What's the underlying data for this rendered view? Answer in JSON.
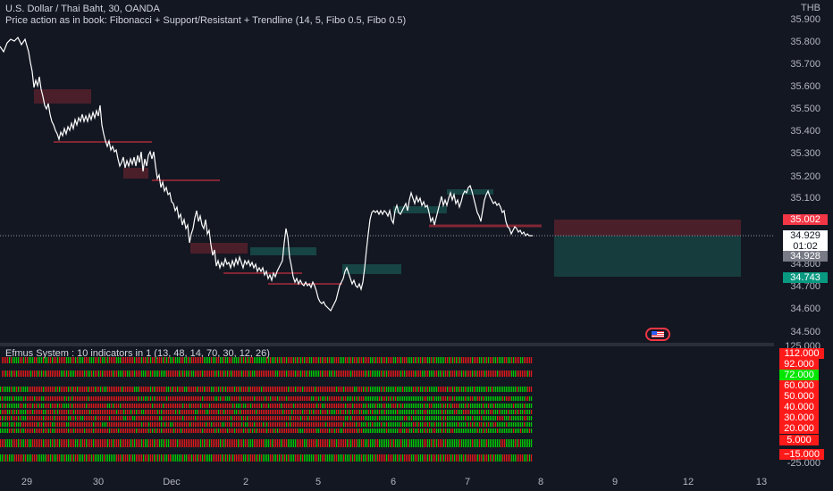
{
  "header": {
    "symbol_line": "U.S. Dollar / Thai Baht, 30, OANDA",
    "indicator_line": "Price action as in book: Fibonacci + Support/Resistant + Trendline (14, 5, Fibo 0.5, Fibo 0.5)",
    "currency": "THB"
  },
  "price_axis": {
    "ticks": [
      "35.900",
      "35.800",
      "35.700",
      "35.600",
      "35.500",
      "35.400",
      "35.300",
      "35.200",
      "35.100",
      "34.800",
      "34.700",
      "34.600",
      "34.500"
    ],
    "last_price": "34.929",
    "countdown": "01:02",
    "crosshair_price": "34.928",
    "target_price": "35.002",
    "stop_price": "34.743"
  },
  "indicator": {
    "title": "Efmus System : 10 indicators in 1 (13, 48, 14, 70, 30, 12, 26)",
    "scale_top": "125.000",
    "scale_bottom": "-25.000",
    "levels": [
      "112.000",
      "92.000",
      "72.000",
      "60.000",
      "50.000",
      "40.000",
      "30.000",
      "20.000",
      "5.000",
      "−15.000"
    ]
  },
  "time_axis": {
    "labels": [
      "29",
      "30",
      "Dec",
      "2",
      "5",
      "6",
      "7",
      "8",
      "9",
      "12",
      "13"
    ]
  },
  "colors": {
    "background": "#131722",
    "bull": "#00e600",
    "bear": "#ff1a1a",
    "price_line": "#ffffff",
    "target_zone": "#f23645",
    "stop_zone": "#22ab94"
  },
  "icons": {
    "flag": "us-flag-icon"
  }
}
